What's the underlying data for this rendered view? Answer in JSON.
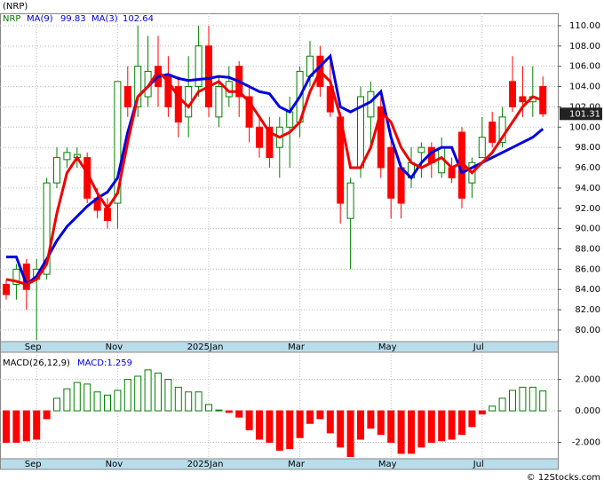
{
  "chart_data": [
    {
      "type": "candlestick",
      "title": "(NRP)",
      "name": "NRP",
      "categories": [
        null,
        null,
        null,
        "Sep",
        null,
        null,
        null,
        null,
        null,
        null,
        null,
        "Nov",
        null,
        null,
        null,
        null,
        null,
        null,
        null,
        null,
        "2025Jan",
        null,
        null,
        null,
        null,
        null,
        null,
        null,
        null,
        "Mar",
        null,
        null,
        null,
        null,
        null,
        null,
        null,
        null,
        "May",
        null,
        null,
        null,
        null,
        null,
        null,
        null,
        null,
        "Jul",
        null,
        null,
        null,
        null,
        null,
        null
      ],
      "open": [
        84.5,
        84.5,
        86.5,
        85,
        85.5,
        94.5,
        96.8,
        97,
        97,
        93,
        92,
        92.5,
        104,
        102,
        103,
        106,
        105,
        104,
        101,
        104,
        108,
        101,
        103,
        106,
        103,
        100,
        100,
        98,
        100,
        100.5,
        105,
        107,
        104,
        101,
        91,
        96,
        101,
        102,
        98,
        96,
        95,
        97.5,
        98,
        95.5,
        96,
        99.5,
        94.5,
        97,
        100.5,
        98.5,
        104.5,
        103,
        102.5,
        104
      ],
      "high": [
        85,
        86.5,
        87,
        87,
        95,
        98,
        98,
        98,
        97.5,
        94,
        93,
        104.5,
        106,
        110,
        109,
        109,
        107,
        105,
        107,
        110,
        110,
        105,
        106,
        106.5,
        104,
        101,
        101,
        101,
        103,
        106,
        108.5,
        108,
        107,
        101.5,
        95,
        104,
        104.5,
        103,
        99,
        96.5,
        98,
        98.5,
        98.5,
        99,
        97,
        100,
        97,
        101,
        101.5,
        102,
        107,
        106,
        106,
        105
      ],
      "low": [
        83,
        83,
        82,
        79,
        85,
        94,
        96,
        96,
        92.5,
        91,
        90,
        90,
        101,
        101,
        102,
        102,
        101,
        99,
        99,
        103,
        101,
        100,
        102,
        101,
        98.5,
        97,
        96,
        95,
        96,
        99,
        104,
        103,
        101,
        90.5,
        86,
        95,
        98,
        95,
        91,
        91,
        94,
        95,
        95,
        95,
        94.5,
        92,
        93,
        97,
        98,
        98,
        101.5,
        101,
        101,
        101
      ],
      "close": [
        83.5,
        86,
        84,
        86,
        94.5,
        97,
        97.5,
        97.3,
        93,
        91.8,
        90.8,
        104.5,
        102,
        106,
        105.5,
        104,
        102,
        100.5,
        104,
        108,
        102,
        104,
        104.5,
        103,
        100,
        98,
        97,
        100,
        101.5,
        105.5,
        107,
        104,
        101.5,
        92.5,
        94.5,
        103,
        103.5,
        96,
        93,
        92.5,
        96.5,
        98,
        96.5,
        98,
        95,
        93,
        96.5,
        99,
        98.5,
        101,
        102,
        102.5,
        103,
        101.31
      ],
      "up_color": "#008000",
      "down_color": "#ff0000",
      "series": [
        {
          "name": "MA(9)",
          "color": "#0000dd",
          "values": [
            87.2,
            87.2,
            84.5,
            85.3,
            87,
            88.8,
            90.2,
            91.2,
            92.2,
            93,
            93.6,
            95,
            99.5,
            103,
            104,
            105,
            105.2,
            104.8,
            104.6,
            104.7,
            104.8,
            105,
            104.9,
            104.5,
            104,
            103.5,
            103.3,
            102,
            101.5,
            103,
            105,
            106,
            107,
            102,
            101.5,
            102,
            102.5,
            103.5,
            99,
            96,
            95,
            96.5,
            97.5,
            98,
            98,
            95.5,
            96,
            96.5,
            97,
            97.5,
            98,
            98.5,
            99,
            99.83
          ]
        },
        {
          "name": "MA(3)",
          "color": "#ee0000",
          "values": [
            85,
            84.8,
            84.5,
            85,
            86.5,
            91.5,
            95.5,
            97,
            95.5,
            93.5,
            92,
            93.5,
            98.5,
            103,
            104,
            105.5,
            104.5,
            103,
            102,
            103.5,
            104,
            104.5,
            103.5,
            103.5,
            102.5,
            101,
            99.5,
            99,
            99.5,
            100.5,
            103.5,
            105.5,
            104.5,
            101,
            96,
            96,
            98,
            101.5,
            100.5,
            98,
            96.5,
            96,
            96.5,
            97,
            96,
            96.5,
            95.5,
            96.5,
            97.5,
            99,
            100.5,
            102,
            103,
            102.64
          ]
        }
      ],
      "ylim": [
        78.86,
        111.22
      ],
      "yticks": [
        {
          "value": 80,
          "label": "80.00"
        },
        {
          "value": 82,
          "label": "82.00"
        },
        {
          "value": 84,
          "label": "84.00"
        },
        {
          "value": 86,
          "label": "86.00"
        },
        {
          "value": 88,
          "label": "88.00"
        },
        {
          "value": 90,
          "label": "90.00"
        },
        {
          "value": 92,
          "label": "92.00"
        },
        {
          "value": 94,
          "label": "94.00"
        },
        {
          "value": 96,
          "label": "96.00"
        },
        {
          "value": 98,
          "label": "98.00"
        },
        {
          "value": 100,
          "label": "100.00"
        },
        {
          "value": 102,
          "label": "102.00"
        },
        {
          "value": 104,
          "label": "104.00"
        },
        {
          "value": 106,
          "label": "106.00"
        },
        {
          "value": 108,
          "label": "108.00"
        },
        {
          "value": 110,
          "label": "110.00"
        }
      ],
      "grid": true
    },
    {
      "type": "bar",
      "title": "MACD(26,12,9)",
      "subtitle": "MACD:1.259",
      "values": [
        -2.0,
        -2.0,
        -1.9,
        -1.8,
        -0.5,
        0.8,
        1.4,
        1.8,
        1.7,
        1.2,
        1.0,
        1.3,
        2.0,
        2.2,
        2.6,
        2.4,
        2.0,
        1.5,
        1.2,
        1.2,
        0.4,
        0.05,
        -0.1,
        -0.4,
        -1.2,
        -1.8,
        -2.0,
        -2.5,
        -2.4,
        -1.7,
        -0.8,
        -0.5,
        -1.4,
        -2.3,
        -2.9,
        -1.8,
        -1.1,
        -1.5,
        -2.0,
        -2.7,
        -2.7,
        -2.3,
        -2.0,
        -1.9,
        -1.8,
        -1.5,
        -1.0,
        -0.2,
        0.3,
        0.8,
        1.3,
        1.5,
        1.5,
        1.259
      ],
      "up_color": "#008000",
      "down_color": "#ff0000",
      "ylim": [
        -3.04,
        3.72
      ],
      "yticks": [
        {
          "value": -2,
          "label": "-2.000"
        },
        {
          "value": 0,
          "label": "0.000"
        },
        {
          "value": 2,
          "label": "2.000"
        }
      ],
      "grid": true
    }
  ],
  "footer": "© 12Stocks.com"
}
